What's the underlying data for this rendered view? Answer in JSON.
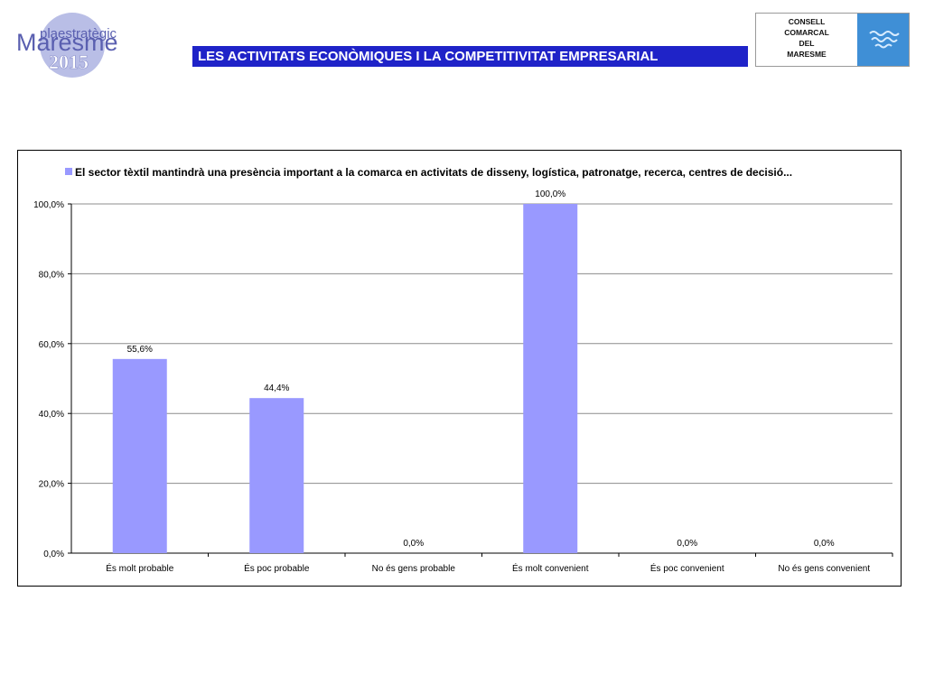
{
  "header": {
    "logo_top": "plaestratègic",
    "logo_main": "Maresme",
    "logo_year": "2015",
    "title": "LES ACTIVITATS ECONÒMIQUES I LA COMPETITIVITAT EMPRESARIAL",
    "council_lines": [
      "CONSELL",
      "COMARCAL",
      "DEL",
      "MARESME"
    ]
  },
  "colors": {
    "title_bar": "#1f23c8",
    "bar": "#9999ff",
    "emblem": "#3f8fd6"
  },
  "chart_data": {
    "type": "bar",
    "categories": [
      "És molt probable",
      "És poc probable",
      "No és gens probable",
      "És molt convenient",
      "És poc convenient",
      "No és gens convenient"
    ],
    "series": [
      {
        "name": "El sector tèxtil mantindrà una presència important a la comarca en activitats de disseny, logística, patronatge, recerca, centres de decisió...",
        "values": [
          55.6,
          44.4,
          0.0,
          100.0,
          0.0,
          0.0
        ],
        "labels": [
          "55,6%",
          "44,4%",
          "0,0%",
          "100,0%",
          "0,0%",
          "0,0%"
        ]
      }
    ],
    "yticks": [
      "0,0%",
      "20,0%",
      "40,0%",
      "60,0%",
      "80,0%",
      "100,0%"
    ],
    "ylim": [
      0,
      100
    ],
    "grid": true,
    "legend": "top"
  }
}
